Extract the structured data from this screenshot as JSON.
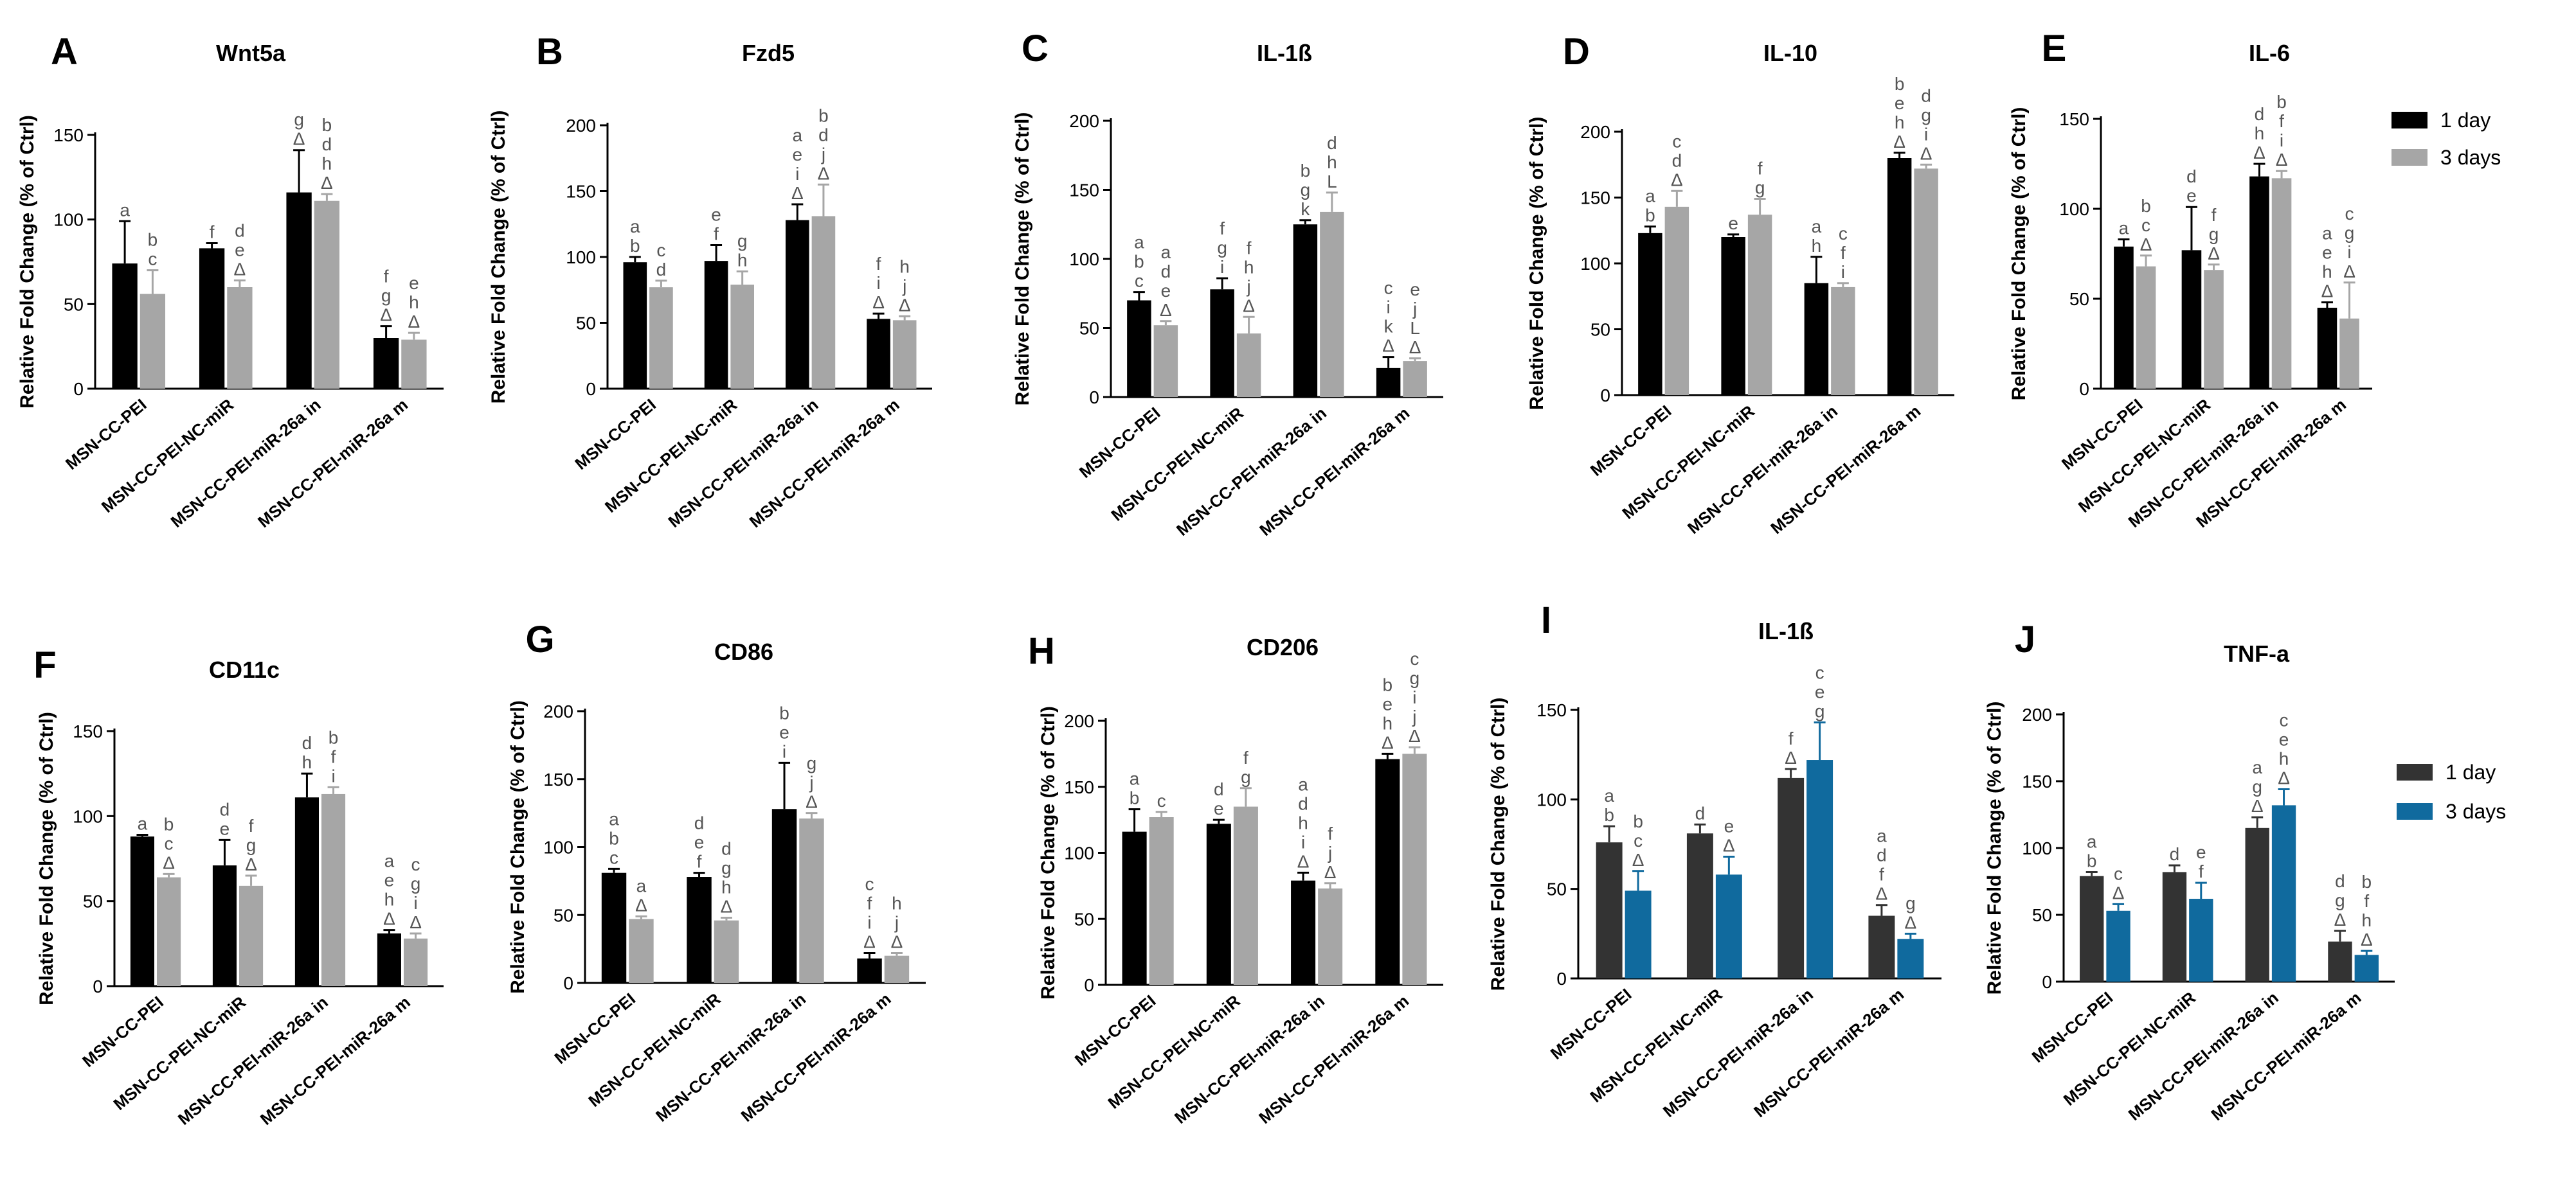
{
  "figure": {
    "axis_label": "Relative Fold Change (% of Ctrl)",
    "categories": [
      "MSN-CC-PEI",
      "MSN-CC-PEI-NC-miR",
      "MSN-CC-PEI-miR-26a in",
      "MSN-CC-PEI-miR-26a m"
    ],
    "legend_top": {
      "labels": [
        "1 day",
        "3 days"
      ],
      "colors": [
        "#000000",
        "#a6a6a6"
      ]
    },
    "legend_bottom": {
      "labels": [
        "1 day",
        "3 days"
      ],
      "colors": [
        "#333333",
        "#106a9e"
      ]
    },
    "palette": {
      "day1": "#000000",
      "day3": "#a6a6a6",
      "day1_alt": "#333333",
      "day3_alt": "#106a9e"
    }
  },
  "chart_data": [
    {
      "type": "bar",
      "letter": "A",
      "title": "Wnt5a",
      "ylim": [
        0,
        150
      ],
      "ticks": [
        0,
        50,
        100,
        150
      ],
      "ylabel": "Relative Fold Change (% of Ctrl)",
      "categories": [
        "MSN-CC-PEI",
        "MSN-CC-PEI-NC-miR",
        "MSN-CC-PEI-miR-26a in",
        "MSN-CC-PEI-miR-26a m"
      ],
      "series": [
        {
          "name": "1 day",
          "values": [
            74,
            83,
            116,
            30
          ],
          "errors": [
            25,
            3,
            25,
            7
          ],
          "labels": [
            [
              "a"
            ],
            [
              "f"
            ],
            [
              "g",
              "Δ"
            ],
            [
              "f",
              "g",
              "Δ"
            ]
          ]
        },
        {
          "name": "3 days",
          "values": [
            56,
            60,
            111,
            29
          ],
          "errors": [
            14,
            4,
            4,
            4
          ],
          "labels": [
            [
              "b",
              "c"
            ],
            [
              "d",
              "e",
              "Δ"
            ],
            [
              "b",
              "d",
              "h",
              "Δ"
            ],
            [
              "e",
              "h",
              "Δ"
            ]
          ]
        }
      ]
    },
    {
      "type": "bar",
      "letter": "B",
      "title": "Fzd5",
      "ylim": [
        0,
        200
      ],
      "ticks": [
        0,
        50,
        100,
        150,
        200
      ],
      "ylabel": "Relative Fold Change (% of Ctrl)",
      "categories": [
        "MSN-CC-PEI",
        "MSN-CC-PEI-NC-miR",
        "MSN-CC-PEI-miR-26a in",
        "MSN-CC-PEI-miR-26a m"
      ],
      "series": [
        {
          "name": "1 day",
          "values": [
            96,
            97,
            128,
            53
          ],
          "errors": [
            4,
            12,
            12,
            4
          ],
          "labels": [
            [
              "a",
              "b"
            ],
            [
              "e",
              "f"
            ],
            [
              "a",
              "e",
              "i",
              "Δ"
            ],
            [
              "f",
              "i",
              "Δ"
            ]
          ]
        },
        {
          "name": "3 days",
          "values": [
            77,
            79,
            131,
            52
          ],
          "errors": [
            5,
            10,
            24,
            3
          ],
          "labels": [
            [
              "c",
              "d"
            ],
            [
              "g",
              "h"
            ],
            [
              "b",
              "d",
              "j",
              "Δ"
            ],
            [
              "h",
              "j",
              "Δ"
            ]
          ]
        }
      ]
    },
    {
      "type": "bar",
      "letter": "C",
      "title": "IL-1ß",
      "ylim": [
        0,
        200
      ],
      "ticks": [
        0,
        50,
        100,
        150,
        200
      ],
      "ylabel": "Relative Fold Change (% of Ctrl)",
      "categories": [
        "MSN-CC-PEI",
        "MSN-CC-PEI-NC-miR",
        "MSN-CC-PEI-miR-26a in",
        "MSN-CC-PEI-miR-26a m"
      ],
      "series": [
        {
          "name": "1 day",
          "values": [
            70,
            78,
            125,
            21
          ],
          "errors": [
            6,
            8,
            3,
            8
          ],
          "labels": [
            [
              "a",
              "b",
              "c"
            ],
            [
              "f",
              "g",
              "i"
            ],
            [
              "b",
              "g",
              "k"
            ],
            [
              "c",
              "i",
              "k",
              "Δ"
            ]
          ]
        },
        {
          "name": "3 days",
          "values": [
            52,
            46,
            134,
            26
          ],
          "errors": [
            3,
            12,
            14,
            2
          ],
          "labels": [
            [
              "a",
              "d",
              "e",
              "Δ"
            ],
            [
              "f",
              "h",
              "j",
              "Δ"
            ],
            [
              "d",
              "h",
              "L"
            ],
            [
              "e",
              "j",
              "L",
              "Δ"
            ]
          ]
        }
      ]
    },
    {
      "type": "bar",
      "letter": "D",
      "title": "IL-10",
      "ylim": [
        0,
        200
      ],
      "ticks": [
        0,
        50,
        100,
        150,
        200
      ],
      "ylabel": "Relative Fold Change (% of Ctrl)",
      "categories": [
        "MSN-CC-PEI",
        "MSN-CC-PEI-NC-miR",
        "MSN-CC-PEI-miR-26a in",
        "MSN-CC-PEI-miR-26a m"
      ],
      "series": [
        {
          "name": "1 day",
          "values": [
            123,
            120,
            85,
            180
          ],
          "errors": [
            5,
            2,
            20,
            4
          ],
          "labels": [
            [
              "a",
              "b"
            ],
            [
              "e"
            ],
            [
              "a",
              "h"
            ],
            [
              "b",
              "e",
              "h",
              "Δ"
            ]
          ]
        },
        {
          "name": "3 days",
          "values": [
            143,
            137,
            82,
            172
          ],
          "errors": [
            12,
            12,
            3,
            3
          ],
          "labels": [
            [
              "c",
              "d",
              "Δ"
            ],
            [
              "f",
              "g"
            ],
            [
              "c",
              "f",
              "i"
            ],
            [
              "d",
              "g",
              "i",
              "Δ"
            ]
          ]
        }
      ]
    },
    {
      "type": "bar",
      "letter": "E",
      "title": "IL-6",
      "ylim": [
        0,
        150
      ],
      "ticks": [
        0,
        50,
        100,
        150
      ],
      "ylabel": "Relative Fold Change (% of Ctrl)",
      "categories": [
        "MSN-CC-PEI",
        "MSN-CC-PEI-NC-miR",
        "MSN-CC-PEI-miR-26a in",
        "MSN-CC-PEI-miR-26a m"
      ],
      "series": [
        {
          "name": "1 day",
          "values": [
            79,
            77,
            118,
            45
          ],
          "errors": [
            4,
            24,
            7,
            3
          ],
          "labels": [
            [
              "a"
            ],
            [
              "d",
              "e"
            ],
            [
              "d",
              "h",
              "Δ"
            ],
            [
              "a",
              "e",
              "h",
              "Δ"
            ]
          ]
        },
        {
          "name": "3 days",
          "values": [
            68,
            66,
            117,
            39
          ],
          "errors": [
            6,
            3,
            4,
            20
          ],
          "labels": [
            [
              "b",
              "c",
              "Δ"
            ],
            [
              "f",
              "g",
              "Δ"
            ],
            [
              "b",
              "f",
              "i",
              "Δ"
            ],
            [
              "c",
              "g",
              "i",
              "Δ"
            ]
          ]
        }
      ]
    },
    {
      "type": "bar",
      "letter": "F",
      "title": "CD11c",
      "ylim": [
        0,
        150
      ],
      "ticks": [
        0,
        50,
        100,
        150
      ],
      "ylabel": "Relative Fold Change (% of Ctrl)",
      "categories": [
        "MSN-CC-PEI",
        "MSN-CC-PEI-NC-miR",
        "MSN-CC-PEI-miR-26a in",
        "MSN-CC-PEI-miR-26a m"
      ],
      "series": [
        {
          "name": "1 day",
          "values": [
            88,
            71,
            111,
            31
          ],
          "errors": [
            1,
            15,
            14,
            2
          ],
          "labels": [
            [
              "a"
            ],
            [
              "d",
              "e"
            ],
            [
              "d",
              "h"
            ],
            [
              "a",
              "e",
              "h",
              "Δ"
            ]
          ]
        },
        {
          "name": "3 days",
          "values": [
            64,
            59,
            113,
            28
          ],
          "errors": [
            2,
            6,
            4,
            3
          ],
          "labels": [
            [
              "b",
              "c",
              "Δ"
            ],
            [
              "f",
              "g",
              "Δ"
            ],
            [
              "b",
              "f",
              "i"
            ],
            [
              "c",
              "g",
              "i",
              "Δ"
            ]
          ]
        }
      ]
    },
    {
      "type": "bar",
      "letter": "G",
      "title": "CD86",
      "ylim": [
        0,
        200
      ],
      "ticks": [
        0,
        50,
        100,
        150,
        200
      ],
      "ylabel": "Relative Fold Change (% of Ctrl)",
      "categories": [
        "MSN-CC-PEI",
        "MSN-CC-PEI-NC-miR",
        "MSN-CC-PEI-miR-26a in",
        "MSN-CC-PEI-miR-26a m"
      ],
      "series": [
        {
          "name": "1 day",
          "values": [
            81,
            78,
            128,
            18
          ],
          "errors": [
            3,
            3,
            34,
            4
          ],
          "labels": [
            [
              "a",
              "b",
              "c"
            ],
            [
              "d",
              "e",
              "f"
            ],
            [
              "b",
              "e",
              "i"
            ],
            [
              "c",
              "f",
              "i",
              "Δ"
            ]
          ]
        },
        {
          "name": "3 days",
          "values": [
            47,
            46,
            121,
            20
          ],
          "errors": [
            2,
            2,
            4,
            2
          ],
          "labels": [
            [
              "a",
              "Δ"
            ],
            [
              "d",
              "g",
              "h",
              "Δ"
            ],
            [
              "g",
              "j",
              "Δ"
            ],
            [
              "h",
              "j",
              "Δ"
            ]
          ]
        }
      ]
    },
    {
      "type": "bar",
      "letter": "H",
      "title": "CD206",
      "ylim": [
        0,
        200
      ],
      "ticks": [
        0,
        50,
        100,
        150,
        200
      ],
      "ylabel": "Relative Fold Change (% of Ctrl)",
      "categories": [
        "MSN-CC-PEI",
        "MSN-CC-PEI-NC-miR",
        "MSN-CC-PEI-miR-26a in",
        "MSN-CC-PEI-miR-26a m"
      ],
      "series": [
        {
          "name": "1 day",
          "values": [
            116,
            122,
            79,
            171
          ],
          "errors": [
            17,
            3,
            6,
            4
          ],
          "labels": [
            [
              "a",
              "b"
            ],
            [
              "d",
              "e"
            ],
            [
              "a",
              "d",
              "h",
              "i",
              "Δ"
            ],
            [
              "b",
              "e",
              "h",
              "Δ"
            ]
          ]
        },
        {
          "name": "3 days",
          "values": [
            127,
            135,
            73,
            175
          ],
          "errors": [
            4,
            14,
            4,
            5
          ],
          "labels": [
            [
              "c"
            ],
            [
              "f",
              "g"
            ],
            [
              "f",
              "j",
              "Δ"
            ],
            [
              "c",
              "g",
              "i",
              "j",
              "Δ"
            ]
          ]
        }
      ]
    },
    {
      "type": "bar",
      "letter": "I",
      "title": "IL-1ß",
      "ylim": [
        0,
        150
      ],
      "ticks": [
        0,
        50,
        100,
        150
      ],
      "ylabel": "Relative Fold Change (% of Ctrl)",
      "alt_colors": true,
      "categories": [
        "MSN-CC-PEI",
        "MSN-CC-PEI-NC-miR",
        "MSN-CC-PEI-miR-26a in",
        "MSN-CC-PEI-miR-26a m"
      ],
      "series": [
        {
          "name": "1 day",
          "values": [
            76,
            81,
            112,
            35
          ],
          "errors": [
            9,
            5,
            5,
            6
          ],
          "labels": [
            [
              "a",
              "b"
            ],
            [
              "d"
            ],
            [
              "f",
              "Δ"
            ],
            [
              "a",
              "d",
              "f",
              "Δ"
            ]
          ]
        },
        {
          "name": "3 days",
          "values": [
            49,
            58,
            122,
            22
          ],
          "errors": [
            11,
            10,
            21,
            3
          ],
          "labels": [
            [
              "b",
              "c",
              "Δ"
            ],
            [
              "e",
              "Δ"
            ],
            [
              "c",
              "e",
              "g"
            ],
            [
              "g",
              "Δ"
            ]
          ]
        }
      ]
    },
    {
      "type": "bar",
      "letter": "J",
      "title": "TNF-a",
      "ylim": [
        0,
        200
      ],
      "ticks": [
        0,
        50,
        100,
        150,
        200
      ],
      "ylabel": "Relative Fold Change (% of Ctrl)",
      "alt_colors": true,
      "categories": [
        "MSN-CC-PEI",
        "MSN-CC-PEI-NC-miR",
        "MSN-CC-PEI-miR-26a in",
        "MSN-CC-PEI-miR-26a m"
      ],
      "series": [
        {
          "name": "1 day",
          "values": [
            79,
            82,
            115,
            30
          ],
          "errors": [
            3,
            5,
            8,
            8
          ],
          "labels": [
            [
              "a",
              "b"
            ],
            [
              "d"
            ],
            [
              "a",
              "g",
              "Δ"
            ],
            [
              "d",
              "g",
              "Δ"
            ]
          ]
        },
        {
          "name": "3 days",
          "values": [
            53,
            62,
            132,
            20
          ],
          "errors": [
            5,
            12,
            12,
            3
          ],
          "labels": [
            [
              "c",
              "Δ"
            ],
            [
              "e",
              "f"
            ],
            [
              "c",
              "e",
              "h",
              "Δ"
            ],
            [
              "b",
              "f",
              "h",
              "Δ"
            ]
          ]
        }
      ]
    }
  ]
}
